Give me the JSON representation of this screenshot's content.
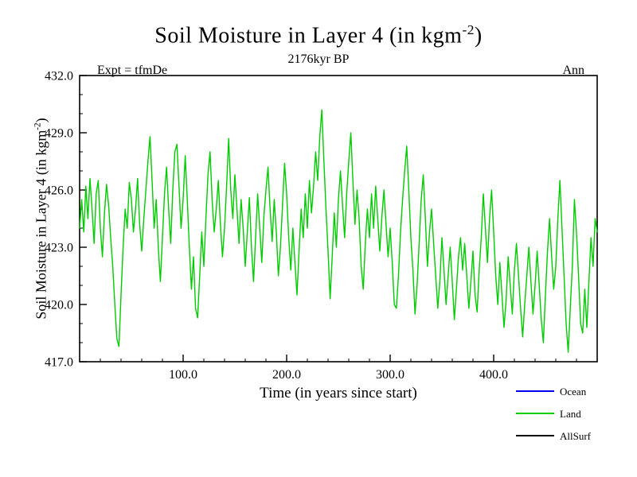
{
  "title": {
    "prefix": "Soil Moisture in Layer 4 (in kgm",
    "sup": "-2",
    "suffix": ")"
  },
  "subtitle": "2176kyr BP",
  "expt_label": "Expt = tfmDe",
  "period_label": "Ann",
  "x_axis": {
    "label": "Time (in years since start)"
  },
  "y_axis": {
    "label_prefix": "Soil Moisture in Layer 4 (in kgm",
    "label_sup": "-2",
    "label_suffix": ")"
  },
  "legend": {
    "position": "bottom-right",
    "items": [
      {
        "label": "Ocean",
        "color": "#0000ee"
      },
      {
        "label": "Land",
        "color": "#00cc00"
      },
      {
        "label": "AllSurf",
        "color": "#000000"
      }
    ]
  },
  "chart_data": {
    "type": "line",
    "title": "Soil Moisture in Layer 4 (in kgm-2)",
    "subtitle": "2176kyr BP",
    "experiment": "Expt = tfmDe",
    "period": "Ann",
    "xlabel": "Time (in years since start)",
    "ylabel": "Soil Moisture in Layer 4 (in kgm-2)",
    "xlim": [
      0,
      500
    ],
    "ylim": [
      417.0,
      432.0
    ],
    "xticks": [
      100,
      200,
      300,
      400
    ],
    "xtick_labels": [
      "100.0",
      "200.0",
      "300.0",
      "400.0"
    ],
    "yticks": [
      417,
      420,
      423,
      426,
      429,
      432
    ],
    "ytick_labels": [
      "417.0",
      "420.0",
      "423.0",
      "426.0",
      "429.0",
      "432.0"
    ],
    "grid": false,
    "legend_position": "bottom-right",
    "x_start": 0,
    "x_step": 2,
    "series": [
      {
        "name": "Ocean",
        "color": "#0000ee",
        "values": []
      },
      {
        "name": "Land",
        "color": "#00cc00",
        "values": [
          424.0,
          425.5,
          423.8,
          426.2,
          424.5,
          426.6,
          425.0,
          423.2,
          425.8,
          426.5,
          424.0,
          422.5,
          424.8,
          426.3,
          425.2,
          423.5,
          422.0,
          420.0,
          418.2,
          417.8,
          420.5,
          423.0,
          425.0,
          424.0,
          426.4,
          425.5,
          423.8,
          425.0,
          426.6,
          424.2,
          422.8,
          424.5,
          426.0,
          427.5,
          428.8,
          426.5,
          424.0,
          425.5,
          423.0,
          421.2,
          423.5,
          425.8,
          427.2,
          425.0,
          423.2,
          426.0,
          428.0,
          428.4,
          426.2,
          424.0,
          425.5,
          427.8,
          425.5,
          423.0,
          420.8,
          422.5,
          419.8,
          419.3,
          421.5,
          423.8,
          422.0,
          424.5,
          426.8,
          428.0,
          425.5,
          423.8,
          425.0,
          426.5,
          424.2,
          422.5,
          424.0,
          426.2,
          428.7,
          426.0,
          424.5,
          426.8,
          425.0,
          423.2,
          425.5,
          424.0,
          422.0,
          423.8,
          425.6,
          423.0,
          421.2,
          423.5,
          425.8,
          424.0,
          422.2,
          424.6,
          426.0,
          427.2,
          425.0,
          423.3,
          425.5,
          423.8,
          421.5,
          423.0,
          425.2,
          427.4,
          425.8,
          423.5,
          421.8,
          424.0,
          422.2,
          420.5,
          422.8,
          425.0,
          423.5,
          425.8,
          424.0,
          426.5,
          424.8,
          426.2,
          428.0,
          426.5,
          428.8,
          430.2,
          427.5,
          425.0,
          422.8,
          420.3,
          422.5,
          424.8,
          423.0,
          425.5,
          427.0,
          425.2,
          423.5,
          425.8,
          427.5,
          429.0,
          426.5,
          424.2,
          426.0,
          424.5,
          422.0,
          420.8,
          423.2,
          425.0,
          423.5,
          425.8,
          424.0,
          426.2,
          424.5,
          422.8,
          424.6,
          426.0,
          424.2,
          422.5,
          424.0,
          422.2,
          420.0,
          419.8,
          421.5,
          423.8,
          425.5,
          427.0,
          428.3,
          426.0,
          423.5,
          421.8,
          419.5,
          421.0,
          423.2,
          425.5,
          426.8,
          424.5,
          422.0,
          423.8,
          425.0,
          423.2,
          421.5,
          419.8,
          421.2,
          423.5,
          421.8,
          420.0,
          421.5,
          423.0,
          421.2,
          419.2,
          420.8,
          422.5,
          423.5,
          421.8,
          423.2,
          421.5,
          419.8,
          421.2,
          422.8,
          420.5,
          419.6,
          421.8,
          423.5,
          425.8,
          424.0,
          422.2,
          424.5,
          426.0,
          423.8,
          421.5,
          420.0,
          422.2,
          420.5,
          418.8,
          420.2,
          422.5,
          421.0,
          419.5,
          421.8,
          423.2,
          421.5,
          419.8,
          418.3,
          420.0,
          421.5,
          423.0,
          421.2,
          419.5,
          421.0,
          422.8,
          421.0,
          419.2,
          418.0,
          420.5,
          422.8,
          424.5,
          422.5,
          420.8,
          422.0,
          424.5,
          426.5,
          424.0,
          421.5,
          419.0,
          417.5,
          419.8,
          422.0,
          425.5,
          423.8,
          421.5,
          419.0,
          418.5,
          420.8,
          418.8,
          421.2,
          423.5,
          422.0,
          424.5,
          423.8
        ]
      },
      {
        "name": "AllSurf",
        "color": "#000000",
        "values": []
      }
    ]
  }
}
